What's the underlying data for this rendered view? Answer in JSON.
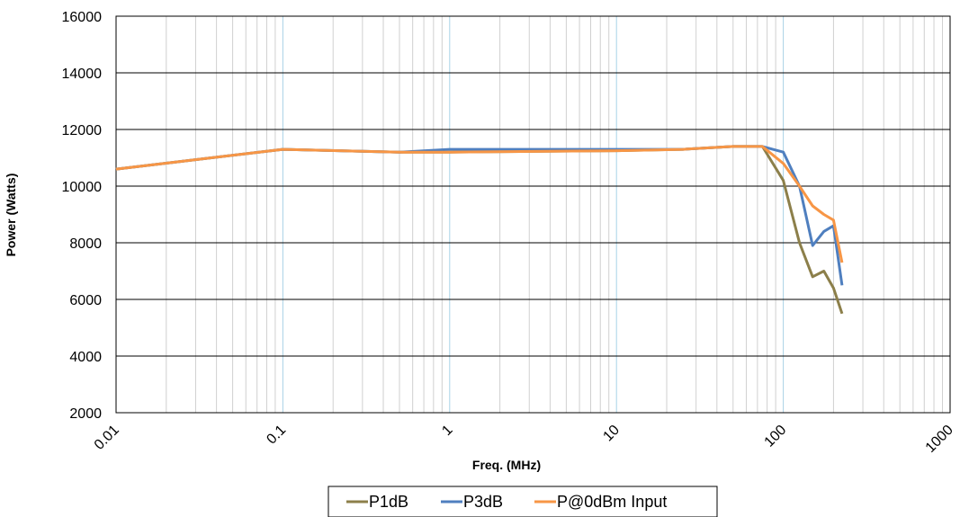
{
  "chart_data": {
    "type": "line",
    "title": "",
    "xlabel": "Freq. (MHz)",
    "ylabel": "Power (Watts)",
    "x_scale": "log",
    "xlim": [
      0.01,
      1000
    ],
    "ylim": [
      2000,
      16000
    ],
    "x_ticks": [
      0.01,
      0.1,
      1,
      10,
      100,
      1000
    ],
    "x_tick_labels": [
      "0.01",
      "0.1",
      "1",
      "10",
      "100",
      "1000"
    ],
    "y_ticks": [
      2000,
      4000,
      6000,
      8000,
      10000,
      12000,
      14000,
      16000
    ],
    "y_tick_labels": [
      "2000",
      "4000",
      "6000",
      "8000",
      "10000",
      "12000",
      "14000",
      "16000"
    ],
    "grid": true,
    "legend_position": "bottom",
    "series": [
      {
        "name": "P1dB",
        "color": "#8c7f4a",
        "x": [
          0.01,
          0.1,
          0.5,
          1,
          10,
          25,
          50,
          75,
          100,
          125,
          150,
          175,
          200,
          225
        ],
        "y": [
          10600,
          11300,
          11200,
          11200,
          11250,
          11300,
          11400,
          11400,
          10200,
          8000,
          6800,
          7000,
          6400,
          5500
        ]
      },
      {
        "name": "P3dB",
        "color": "#4f7fbf",
        "x": [
          0.01,
          0.1,
          0.5,
          1,
          10,
          25,
          50,
          75,
          100,
          125,
          150,
          175,
          200,
          225
        ],
        "y": [
          10600,
          11300,
          11200,
          11300,
          11300,
          11300,
          11400,
          11400,
          11200,
          10000,
          7900,
          8400,
          8600,
          6500
        ]
      },
      {
        "name": "P@0dBm Input",
        "color": "#f79646",
        "x": [
          0.01,
          0.1,
          0.5,
          1,
          10,
          25,
          50,
          75,
          100,
          125,
          150,
          175,
          200,
          225
        ],
        "y": [
          10600,
          11300,
          11200,
          11200,
          11250,
          11300,
          11400,
          11400,
          10800,
          10000,
          9300,
          9000,
          8800,
          7300
        ]
      }
    ]
  }
}
